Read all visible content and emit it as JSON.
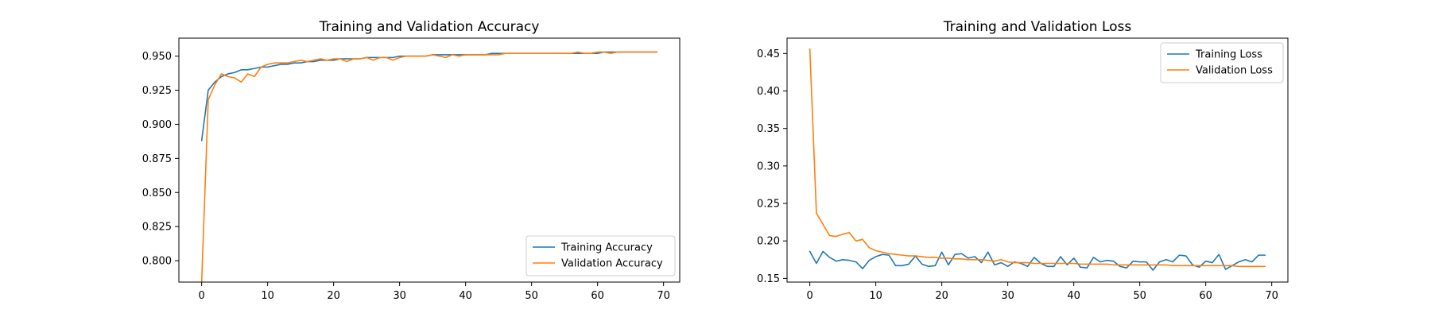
{
  "chart_data": [
    {
      "type": "line",
      "title": "Training and Validation Accuracy",
      "xlabel": "",
      "ylabel": "",
      "xlim": [
        -3.45,
        72.45
      ],
      "ylim": [
        0.7843,
        0.9632
      ],
      "xticks": [
        0,
        10,
        20,
        30,
        40,
        50,
        60,
        70
      ],
      "xtick_labels": [
        "0",
        "10",
        "20",
        "30",
        "40",
        "50",
        "60",
        "70"
      ],
      "yticks": [
        0.8,
        0.825,
        0.85,
        0.875,
        0.9,
        0.925,
        0.95
      ],
      "ytick_labels": [
        "0.800",
        "0.825",
        "0.850",
        "0.875",
        "0.900",
        "0.925",
        "0.950"
      ],
      "grid": false,
      "legend": "lower-right",
      "x": [
        0,
        1,
        2,
        3,
        4,
        5,
        6,
        7,
        8,
        9,
        10,
        11,
        12,
        13,
        14,
        15,
        16,
        17,
        18,
        19,
        20,
        21,
        22,
        23,
        24,
        25,
        26,
        27,
        28,
        29,
        30,
        31,
        32,
        33,
        34,
        35,
        36,
        37,
        38,
        39,
        40,
        41,
        42,
        43,
        44,
        45,
        46,
        47,
        48,
        49,
        50,
        51,
        52,
        53,
        54,
        55,
        56,
        57,
        58,
        59,
        60,
        61,
        62,
        63,
        64,
        65,
        66,
        67,
        68,
        69
      ],
      "series": [
        {
          "name": "Training Accuracy",
          "color": "#1f77b4",
          "values": [
            0.888,
            0.925,
            0.931,
            0.935,
            0.937,
            0.938,
            0.94,
            0.94,
            0.941,
            0.942,
            0.942,
            0.943,
            0.944,
            0.944,
            0.945,
            0.945,
            0.946,
            0.946,
            0.947,
            0.947,
            0.947,
            0.948,
            0.948,
            0.948,
            0.948,
            0.949,
            0.949,
            0.949,
            0.949,
            0.949,
            0.95,
            0.95,
            0.95,
            0.95,
            0.95,
            0.951,
            0.951,
            0.951,
            0.951,
            0.951,
            0.951,
            0.951,
            0.951,
            0.951,
            0.952,
            0.952,
            0.952,
            0.952,
            0.952,
            0.952,
            0.952,
            0.952,
            0.952,
            0.952,
            0.952,
            0.952,
            0.952,
            0.952,
            0.952,
            0.952,
            0.952,
            0.953,
            0.953,
            0.953,
            0.953,
            0.953,
            0.953,
            0.953,
            0.953,
            0.953
          ]
        },
        {
          "name": "Validation Accuracy",
          "color": "#ff7f0e",
          "values": [
            0.784,
            0.918,
            0.929,
            0.937,
            0.935,
            0.934,
            0.931,
            0.937,
            0.935,
            0.942,
            0.944,
            0.945,
            0.945,
            0.945,
            0.946,
            0.947,
            0.946,
            0.947,
            0.948,
            0.947,
            0.948,
            0.948,
            0.946,
            0.948,
            0.948,
            0.949,
            0.947,
            0.949,
            0.949,
            0.947,
            0.949,
            0.95,
            0.95,
            0.95,
            0.95,
            0.951,
            0.95,
            0.949,
            0.951,
            0.95,
            0.951,
            0.951,
            0.951,
            0.951,
            0.951,
            0.951,
            0.952,
            0.952,
            0.952,
            0.952,
            0.952,
            0.952,
            0.952,
            0.952,
            0.952,
            0.952,
            0.952,
            0.953,
            0.952,
            0.952,
            0.953,
            0.953,
            0.952,
            0.953,
            0.953,
            0.953,
            0.953,
            0.953,
            0.953,
            0.953
          ]
        }
      ]
    },
    {
      "type": "line",
      "title": "Training and Validation Loss",
      "xlabel": "",
      "ylabel": "",
      "xlim": [
        -3.45,
        72.45
      ],
      "ylim": [
        0.1451,
        0.4705
      ],
      "xticks": [
        0,
        10,
        20,
        30,
        40,
        50,
        60,
        70
      ],
      "xtick_labels": [
        "0",
        "10",
        "20",
        "30",
        "40",
        "50",
        "60",
        "70"
      ],
      "yticks": [
        0.15,
        0.2,
        0.25,
        0.3,
        0.35,
        0.4,
        0.45
      ],
      "ytick_labels": [
        "0.15",
        "0.20",
        "0.25",
        "0.30",
        "0.35",
        "0.40",
        "0.45"
      ],
      "grid": false,
      "legend": "upper-right",
      "x": [
        0,
        1,
        2,
        3,
        4,
        5,
        6,
        7,
        8,
        9,
        10,
        11,
        12,
        13,
        14,
        15,
        16,
        17,
        18,
        19,
        20,
        21,
        22,
        23,
        24,
        25,
        26,
        27,
        28,
        29,
        30,
        31,
        32,
        33,
        34,
        35,
        36,
        37,
        38,
        39,
        40,
        41,
        42,
        43,
        44,
        45,
        46,
        47,
        48,
        49,
        50,
        51,
        52,
        53,
        54,
        55,
        56,
        57,
        58,
        59,
        60,
        61,
        62,
        63,
        64,
        65,
        66,
        67,
        68,
        69
      ],
      "series": [
        {
          "name": "Training Loss",
          "color": "#1f77b4",
          "values": [
            0.186,
            0.17,
            0.186,
            0.178,
            0.173,
            0.175,
            0.174,
            0.172,
            0.163,
            0.174,
            0.179,
            0.182,
            0.181,
            0.167,
            0.167,
            0.169,
            0.18,
            0.169,
            0.166,
            0.167,
            0.185,
            0.168,
            0.182,
            0.183,
            0.177,
            0.179,
            0.171,
            0.185,
            0.168,
            0.171,
            0.166,
            0.172,
            0.17,
            0.166,
            0.178,
            0.17,
            0.166,
            0.166,
            0.179,
            0.168,
            0.177,
            0.165,
            0.164,
            0.178,
            0.172,
            0.174,
            0.173,
            0.166,
            0.164,
            0.173,
            0.172,
            0.172,
            0.161,
            0.172,
            0.175,
            0.172,
            0.181,
            0.18,
            0.168,
            0.165,
            0.173,
            0.171,
            0.182,
            0.162,
            0.167,
            0.172,
            0.175,
            0.172,
            0.181,
            0.181
          ]
        },
        {
          "name": "Validation Loss",
          "color": "#ff7f0e",
          "values": [
            0.456,
            0.237,
            0.222,
            0.207,
            0.206,
            0.209,
            0.211,
            0.2,
            0.202,
            0.191,
            0.187,
            0.185,
            0.183,
            0.182,
            0.181,
            0.18,
            0.18,
            0.179,
            0.178,
            0.178,
            0.177,
            0.177,
            0.176,
            0.176,
            0.175,
            0.175,
            0.175,
            0.174,
            0.173,
            0.175,
            0.172,
            0.171,
            0.171,
            0.171,
            0.17,
            0.17,
            0.17,
            0.17,
            0.17,
            0.17,
            0.17,
            0.169,
            0.169,
            0.169,
            0.169,
            0.169,
            0.168,
            0.168,
            0.168,
            0.168,
            0.168,
            0.168,
            0.168,
            0.168,
            0.168,
            0.167,
            0.167,
            0.167,
            0.167,
            0.167,
            0.167,
            0.167,
            0.167,
            0.167,
            0.167,
            0.166,
            0.166,
            0.166,
            0.166,
            0.166
          ]
        }
      ]
    }
  ]
}
